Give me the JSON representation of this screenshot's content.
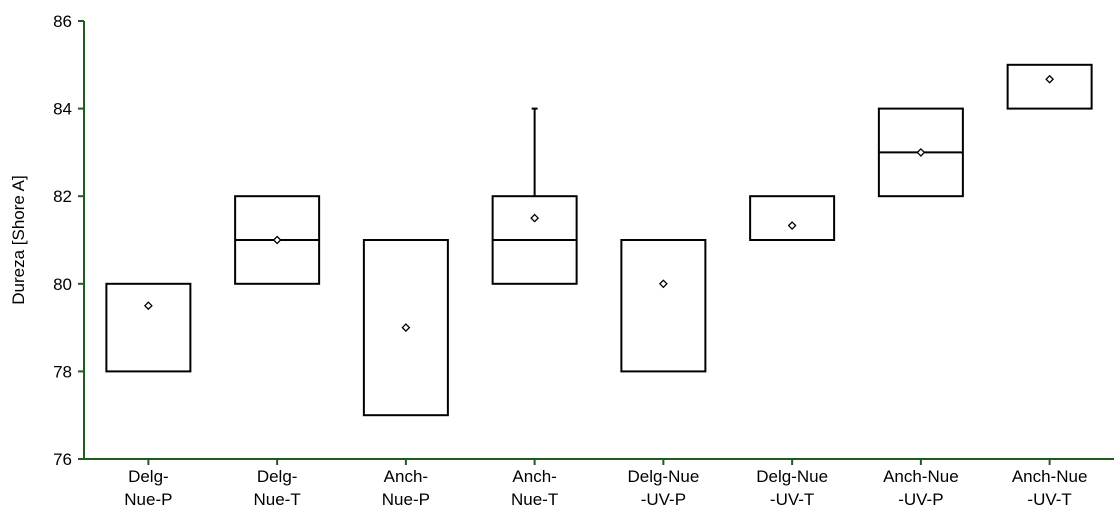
{
  "chart_data": {
    "type": "box",
    "ylabel": "Dureza [Shore A]",
    "ylim": [
      76,
      86
    ],
    "yticks": [
      76,
      78,
      80,
      82,
      84,
      86
    ],
    "categories": [
      [
        "Delg-",
        "Nue-P"
      ],
      [
        "Delg-",
        "Nue-T"
      ],
      [
        "Anch-",
        "Nue-P"
      ],
      [
        "Anch-",
        "Nue-T"
      ],
      [
        "Delg-Nue",
        "-UV-P"
      ],
      [
        "Delg-Nue",
        "-UV-T"
      ],
      [
        "Anch-Nue",
        "-UV-P"
      ],
      [
        "Anch-Nue",
        "-UV-T"
      ]
    ],
    "boxes": [
      {
        "q1": 78,
        "median": null,
        "q3": 80,
        "mean": 79.5,
        "whisker_low": null,
        "whisker_high": null
      },
      {
        "q1": 80,
        "median": 81,
        "q3": 82,
        "mean": 81,
        "whisker_low": null,
        "whisker_high": null
      },
      {
        "q1": 77,
        "median": null,
        "q3": 81,
        "mean": 79,
        "whisker_low": null,
        "whisker_high": null
      },
      {
        "q1": 80,
        "median": 81,
        "q3": 82,
        "mean": 81.5,
        "whisker_low": null,
        "whisker_high": 84
      },
      {
        "q1": 78,
        "median": null,
        "q3": 81,
        "mean": 80,
        "whisker_low": null,
        "whisker_high": null
      },
      {
        "q1": 81,
        "median": null,
        "q3": 82,
        "mean": 81.33,
        "whisker_low": null,
        "whisker_high": null
      },
      {
        "q1": 82,
        "median": 83,
        "q3": 84,
        "mean": 83,
        "whisker_low": null,
        "whisker_high": null
      },
      {
        "q1": 84,
        "median": null,
        "q3": 85,
        "mean": 84.67,
        "whisker_low": null,
        "whisker_high": null
      }
    ],
    "colors": {
      "axis": "#1f5c1f",
      "box": "#000000"
    }
  }
}
